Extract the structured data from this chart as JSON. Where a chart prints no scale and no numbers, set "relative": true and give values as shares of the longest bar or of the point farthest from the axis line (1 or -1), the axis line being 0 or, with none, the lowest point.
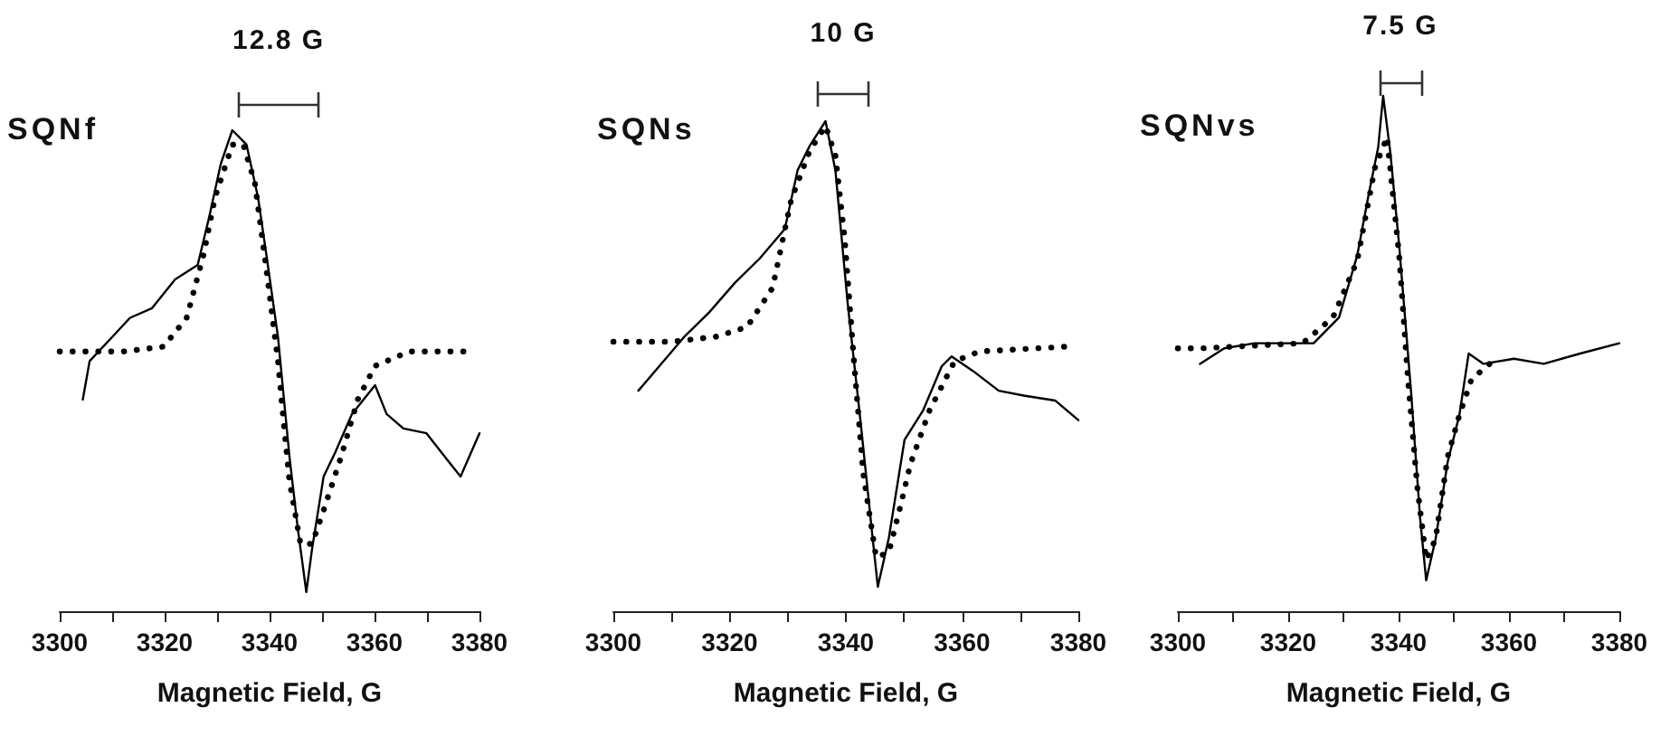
{
  "chart_data": [
    {
      "type": "line",
      "xlabel": "Magnetic Field, G",
      "annotations": [
        "SQNf",
        "12.8 G"
      ],
      "relative": true,
      "xlim": [
        3300,
        3380
      ],
      "xticks": [
        3300,
        {
          "value": 3310,
          "label": null
        },
        3320,
        {
          "value": 3330,
          "label": null
        },
        3340,
        {
          "value": 3350,
          "label": null
        },
        3360,
        {
          "value": 3370,
          "label": null
        },
        3380
      ],
      "tick_labels": "x",
      "grid": false,
      "marker": "none",
      "series": [
        {
          "color": "#000000",
          "line_style": "solid",
          "x": [
            3304.4,
            3305.7,
            3310,
            3313.4,
            3317.6,
            3322,
            3326.3,
            3328.5,
            3330.7,
            3332.9,
            3335.6,
            3337.8,
            3339.4,
            3341.6,
            3343.8,
            3345.4,
            3347,
            3348.1,
            3350.3,
            3352.5,
            3355.7,
            3360.1,
            3362.3,
            3365.5,
            3369.9,
            3374.2,
            3376.4,
            3380
          ],
          "values": [
            0.44,
            0.52,
            0.57,
            0.61,
            0.63,
            0.69,
            0.72,
            0.82,
            0.93,
            1.0,
            0.97,
            0.86,
            0.74,
            0.57,
            0.32,
            0.17,
            0.04,
            0.13,
            0.28,
            0.33,
            0.41,
            0.47,
            0.41,
            0.38,
            0.37,
            0.31,
            0.28,
            0.37
          ]
        },
        {
          "color": "#000000",
          "line_style": "dotted",
          "x": [
            3300,
            3312.2,
            3319.8,
            3324.2,
            3327.4,
            3329.6,
            3332.9,
            3335.0,
            3337.2,
            3339.4,
            3341.6,
            3342.7,
            3343.8,
            3345.9,
            3348.1,
            3350.3,
            3353.6,
            3356.8,
            3360.1,
            3362.3,
            3366.6,
            3378.6
          ],
          "values": [
            0.54,
            0.54,
            0.55,
            0.61,
            0.74,
            0.86,
            0.97,
            0.97,
            0.89,
            0.71,
            0.52,
            0.39,
            0.27,
            0.14,
            0.14,
            0.21,
            0.32,
            0.44,
            0.51,
            0.52,
            0.54,
            0.54
          ]
        }
      ]
    },
    {
      "type": "line",
      "xlabel": "Magnetic Field, G",
      "annotations": [
        "SQNs",
        "10 G"
      ],
      "relative": true,
      "xlim": [
        3300,
        3380
      ],
      "xticks": [
        3300,
        {
          "value": 3310,
          "label": null
        },
        3320,
        {
          "value": 3330,
          "label": null
        },
        3340,
        {
          "value": 3350,
          "label": null
        },
        3360,
        {
          "value": 3370,
          "label": null
        },
        3380
      ],
      "tick_labels": "x",
      "grid": false,
      "marker": "none",
      "series": [
        {
          "color": "#000000",
          "line_style": "solid",
          "x": [
            3304.3,
            3307.9,
            3312.2,
            3316.5,
            3320.9,
            3325.2,
            3329.5,
            3331.7,
            3333.8,
            3336.5,
            3338.2,
            3340.3,
            3342.5,
            3344.6,
            3345.5,
            3347.4,
            3350.1,
            3353.3,
            3356.5,
            3358.2,
            3361.9,
            3366.3,
            3370.6,
            3376,
            3380
          ],
          "values": [
            0.45,
            0.5,
            0.56,
            0.61,
            0.67,
            0.72,
            0.78,
            0.9,
            0.95,
            1.0,
            0.9,
            0.63,
            0.39,
            0.15,
            0.05,
            0.15,
            0.35,
            0.41,
            0.5,
            0.52,
            0.49,
            0.45,
            0.44,
            0.43,
            0.39
          ]
        },
        {
          "color": "#000000",
          "line_style": "dotted",
          "x": [
            3300,
            3310.1,
            3317.6,
            3323.0,
            3327.4,
            3330.6,
            3333.8,
            3336.5,
            3338.2,
            3339.8,
            3341.4,
            3343.0,
            3345.2,
            3347.4,
            3349.5,
            3351.1,
            3354.4,
            3358.7,
            3363.0,
            3378.2
          ],
          "values": [
            0.55,
            0.55,
            0.56,
            0.58,
            0.66,
            0.84,
            0.94,
            0.99,
            0.93,
            0.76,
            0.51,
            0.28,
            0.11,
            0.12,
            0.22,
            0.3,
            0.41,
            0.51,
            0.53,
            0.54
          ]
        }
      ]
    },
    {
      "type": "line",
      "xlabel": "Magnetic Field, G",
      "annotations": [
        "SQNvs",
        "7.5 G"
      ],
      "relative": true,
      "xlim": [
        3300,
        3380
      ],
      "xticks": [
        3300,
        {
          "value": 3310,
          "label": null
        },
        3320,
        {
          "value": 3330,
          "label": null
        },
        3340,
        {
          "value": 3350,
          "label": null
        },
        3360,
        {
          "value": 3370,
          "label": null
        },
        3380
      ],
      "tick_labels": "x",
      "grid": false,
      "marker": "none",
      "series": [
        {
          "color": "#000000",
          "line_style": "solid",
          "x": [
            3304.0,
            3308.4,
            3313.9,
            3319.3,
            3324.6,
            3329.2,
            3332.5,
            3334.6,
            3336.3,
            3337.2,
            3338.5,
            3340.1,
            3342.3,
            3343.9,
            3345.0,
            3346.7,
            3348.9,
            3351.0,
            3352.7,
            3355.4,
            3360.9,
            3366.3,
            3372.9,
            3380
          ],
          "values": [
            0.48,
            0.51,
            0.52,
            0.52,
            0.52,
            0.57,
            0.69,
            0.81,
            0.9,
            1.0,
            0.89,
            0.71,
            0.42,
            0.18,
            0.06,
            0.14,
            0.29,
            0.38,
            0.5,
            0.48,
            0.49,
            0.48,
            0.5,
            0.52
          ]
        },
        {
          "color": "#000000",
          "line_style": "dotted",
          "x": [
            3300,
            3304.0,
            3322.6,
            3328.1,
            3332.5,
            3335.7,
            3337.9,
            3340.1,
            3341.7,
            3343.4,
            3345.0,
            3346.7,
            3348.9,
            3351.0,
            3353.2,
            3356.5
          ],
          "values": [
            0.51,
            0.51,
            0.52,
            0.57,
            0.68,
            0.86,
            0.92,
            0.69,
            0.45,
            0.24,
            0.1,
            0.14,
            0.3,
            0.38,
            0.45,
            0.48
          ]
        }
      ]
    }
  ]
}
